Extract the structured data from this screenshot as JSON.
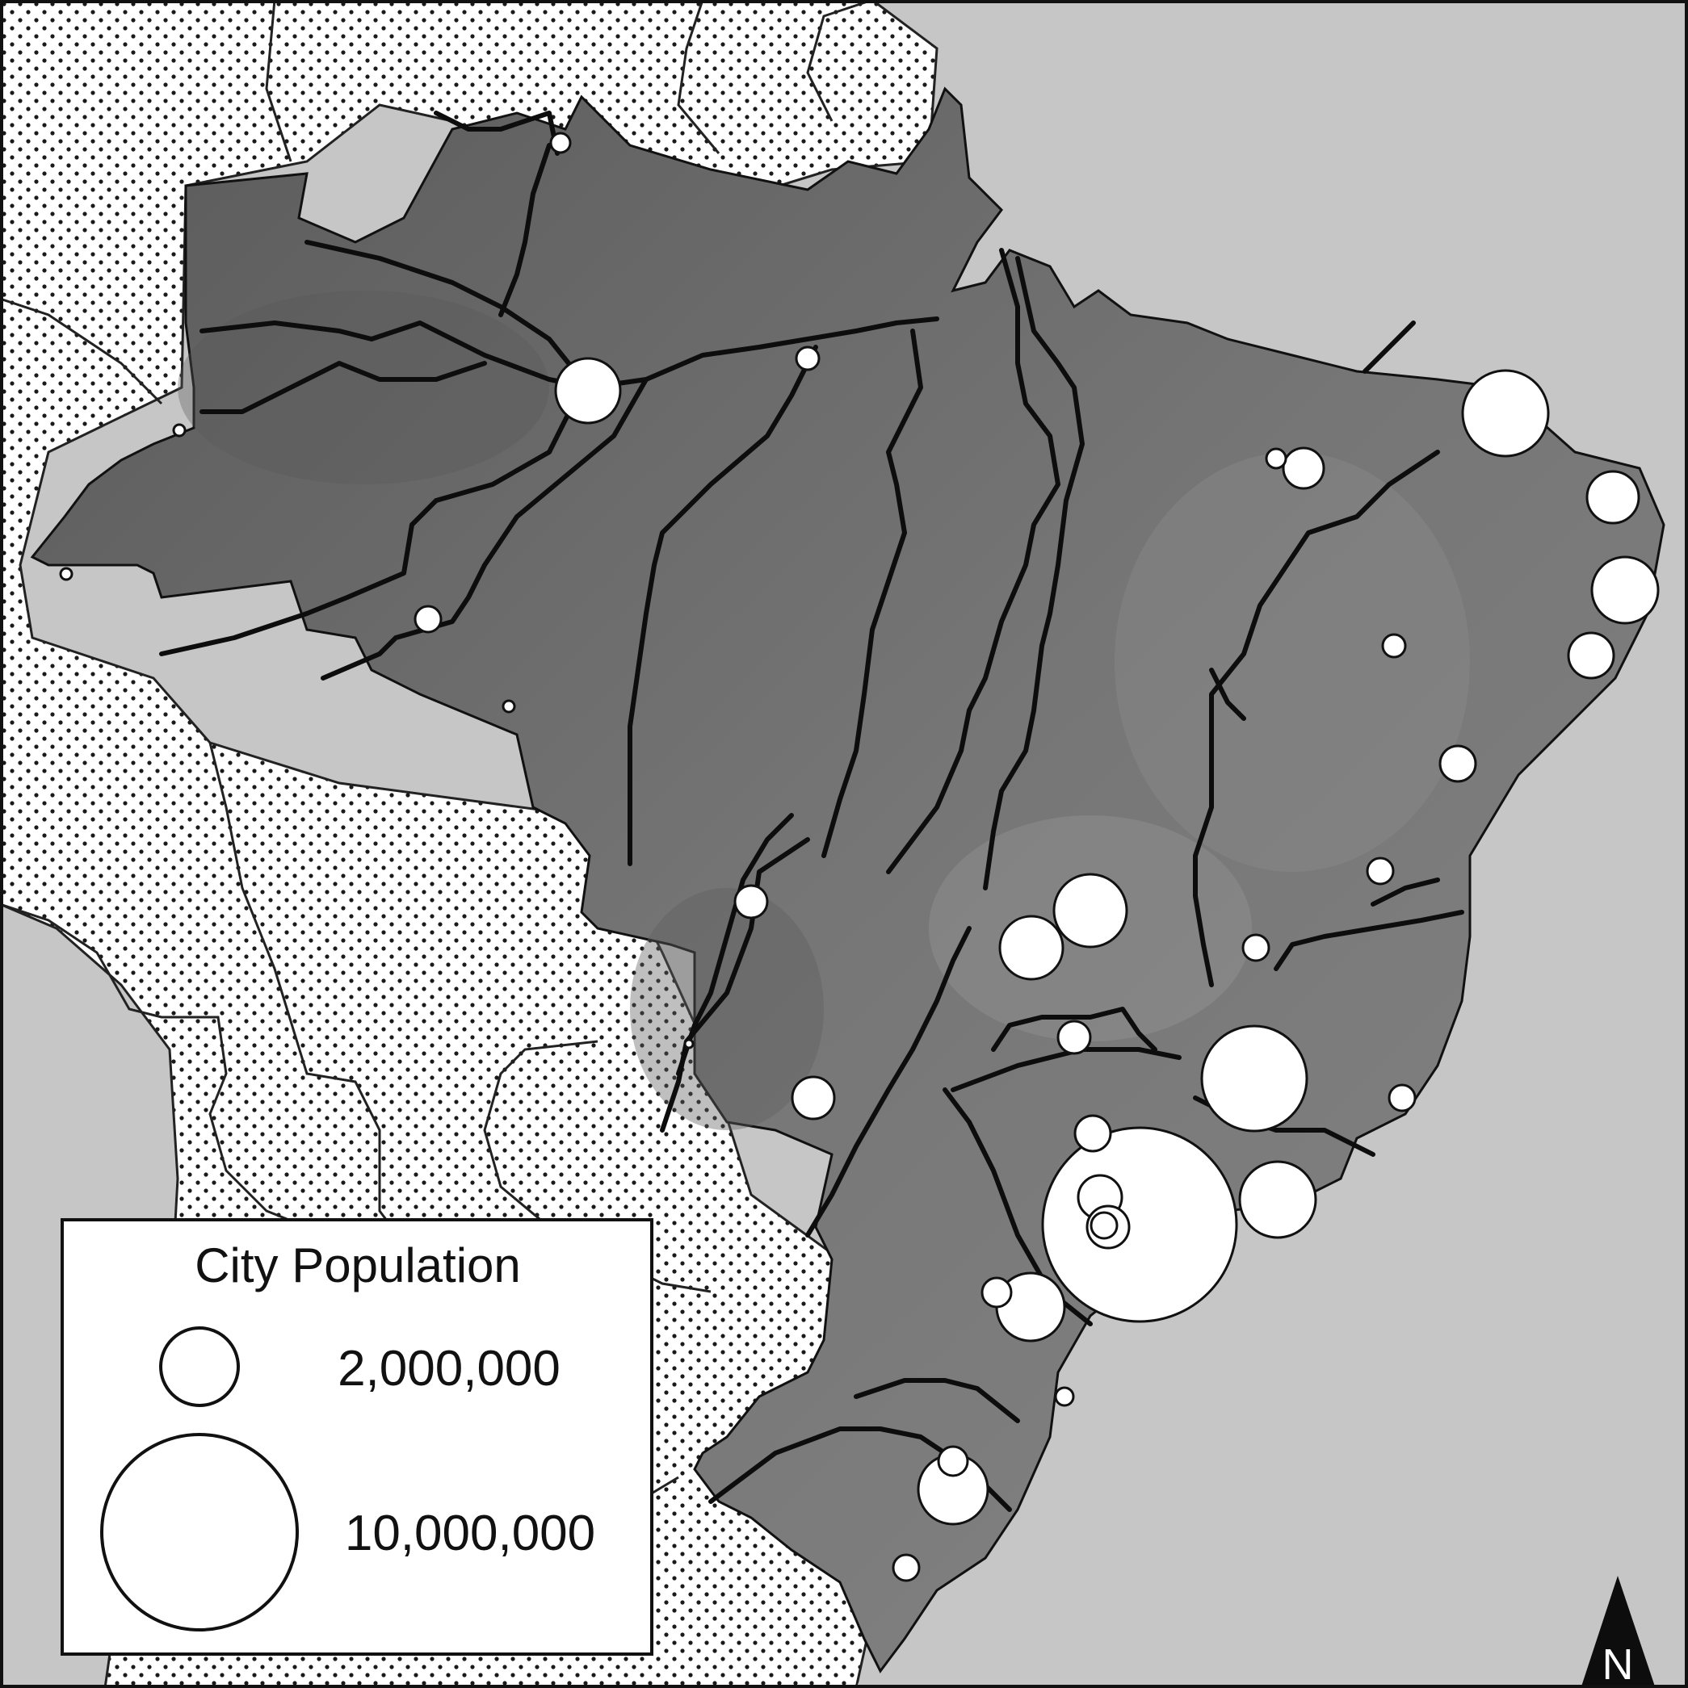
{
  "legend": {
    "title": "City Population",
    "items": [
      {
        "population": 2000000,
        "label": "2,000,000"
      },
      {
        "population": 10000000,
        "label": "10,000,000"
      }
    ]
  },
  "north_arrow": {
    "letter": "N"
  },
  "colors": {
    "ocean": "#c6c6c6",
    "land_brazil": "#6e6e6e",
    "land_neighbors": "#ffffff",
    "dot_pattern": "#1a1a1a",
    "rivers": "#0d0d0d",
    "city_fill": "#ffffff",
    "city_stroke": "#111111",
    "frame": "#111111"
  },
  "cities_note_icons": "cities shown as proportional white circles"
}
